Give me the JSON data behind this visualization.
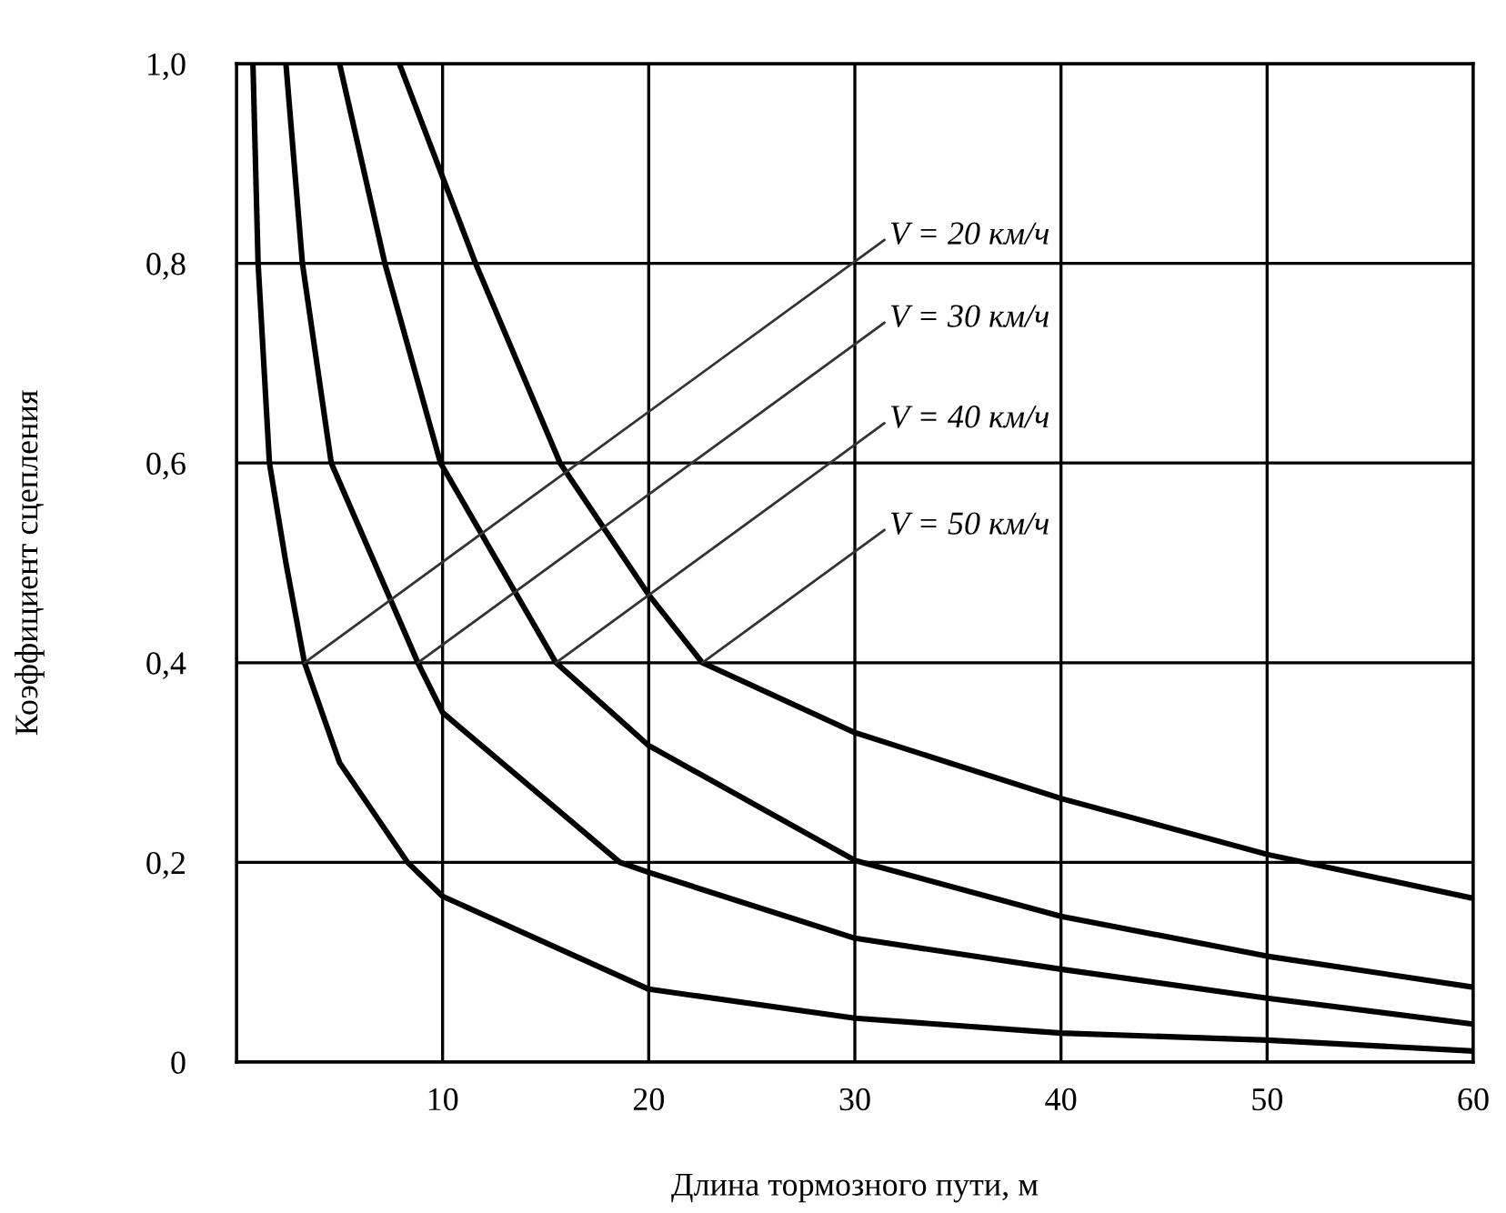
{
  "chart_data": {
    "type": "line",
    "xlabel": "Длина тормозного пути, м",
    "ylabel": "Коэффициент сцепления",
    "series": [
      {
        "color": "#000000",
        "x": [
          0.8,
          1.05,
          1.6,
          2.4,
          3.3,
          5,
          8.3,
          10,
          20,
          30,
          40,
          50,
          60
        ],
        "values": [
          1.0,
          0.8,
          0.6,
          0.5,
          0.4,
          0.3,
          0.2,
          0.166,
          0.073,
          0.044,
          0.029,
          0.022,
          0.011
        ]
      },
      {
        "color": "#000000",
        "x": [
          2.4,
          3.2,
          4.6,
          8.8,
          10,
          18.6,
          20,
          30,
          40,
          50,
          60
        ],
        "values": [
          1.0,
          0.8,
          0.6,
          0.4,
          0.35,
          0.2,
          0.19,
          0.124,
          0.093,
          0.064,
          0.038
        ]
      },
      {
        "color": "#000000",
        "x": [
          5.0,
          7.2,
          9.9,
          15.5,
          20,
          30,
          40,
          50,
          60
        ],
        "values": [
          1.0,
          0.8,
          0.6,
          0.4,
          0.317,
          0.202,
          0.146,
          0.106,
          0.075
        ]
      },
      {
        "color": "#000000",
        "x": [
          7.9,
          11.6,
          15.7,
          20,
          22.6,
          30,
          40,
          50,
          60
        ],
        "values": [
          1.0,
          0.8,
          0.6,
          0.468,
          0.4,
          0.33,
          0.264,
          0.208,
          0.164
        ]
      }
    ],
    "annotations": [
      {
        "text": "V = 20 км/ч",
        "x": 3.3,
        "y": 0.4
      },
      {
        "text": "V = 30 км/ч",
        "x": 8.8,
        "y": 0.4
      },
      {
        "text": "V = 40 км/ч",
        "x": 15.5,
        "y": 0.4
      },
      {
        "text": "V = 50 км/ч",
        "x": 22.6,
        "y": 0.4
      }
    ],
    "xlim": [
      0,
      60
    ],
    "ylim": [
      0,
      1.0
    ],
    "xticks": [
      {
        "value": 0,
        "label": null
      },
      10,
      20,
      30,
      40,
      50,
      60
    ],
    "yticks": [
      {
        "value": 0,
        "label": "0"
      },
      {
        "value": 0.2,
        "label": "0,2"
      },
      {
        "value": 0.4,
        "label": "0,4"
      },
      {
        "value": 0.6,
        "label": "0,6"
      },
      {
        "value": 0.8,
        "label": "0,8"
      },
      {
        "value": 1.0,
        "label": "1,0"
      }
    ],
    "grid": true,
    "marker": "none",
    "line_style": "solid",
    "legend": false
  }
}
